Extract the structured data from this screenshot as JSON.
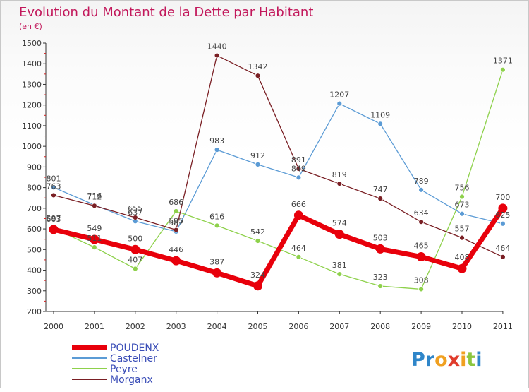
{
  "chart_data": {
    "type": "line",
    "title": "Evolution du Montant de la Dette par Habitant",
    "subtitle": "(en €)",
    "xlabel": "",
    "ylabel": "",
    "categories": [
      "2000",
      "2001",
      "2002",
      "2003",
      "2004",
      "2005",
      "2006",
      "2007",
      "2008",
      "2009",
      "2010",
      "2011"
    ],
    "ylim": [
      200,
      1500
    ],
    "yticks": [
      200,
      300,
      400,
      500,
      600,
      700,
      800,
      900,
      1000,
      1100,
      1200,
      1300,
      1400,
      1500
    ],
    "grid": false,
    "legend_position": "bottom-left",
    "series": [
      {
        "name": "POUDENX",
        "color": "#e8000b",
        "values": [
          597,
          549,
          500,
          446,
          387,
          324,
          666,
          574,
          503,
          465,
          408,
          700
        ]
      },
      {
        "name": "Castelner",
        "color": "#5b9bd5",
        "values": [
          801,
          716,
          637,
          587,
          983,
          912,
          849,
          1207,
          1109,
          789,
          673,
          625
        ]
      },
      {
        "name": "Peyre",
        "color": "#8ed14b",
        "values": [
          603,
          511,
          407,
          686,
          616,
          542,
          464,
          381,
          323,
          308,
          756,
          1371
        ]
      },
      {
        "name": "Morganx",
        "color": "#7a1f24",
        "values": [
          763,
          712,
          655,
          595,
          1440,
          1342,
          891,
          819,
          747,
          634,
          557,
          464
        ]
      }
    ]
  },
  "branding": {
    "logo_text": "Proxiti"
  },
  "colors": {
    "title": "#c2185b",
    "axis": "#333333",
    "legend_text": "#3a4db7"
  }
}
